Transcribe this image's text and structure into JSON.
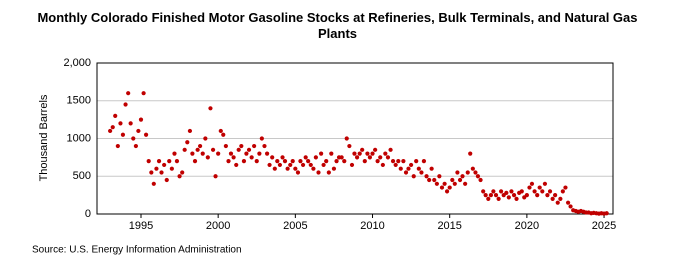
{
  "chart_data": {
    "type": "scatter",
    "title": "Monthly Colorado Finished Motor Gasoline Stocks at Refineries, Bulk Terminals, and Natural Gas Plants",
    "y_label": "Thousand Barrels",
    "source": "Source: U.S. Energy Information Administration",
    "color": "#c00000",
    "grid": true,
    "xlim": [
      1992.15,
      2025.58
    ],
    "xticks": [
      1995,
      2000,
      2005,
      2010,
      2015,
      2020,
      2025
    ],
    "ylim": [
      0,
      2000
    ],
    "yticks": [
      0,
      500,
      1000,
      1500,
      {
        "value": 2000,
        "label": "2,000"
      }
    ],
    "x": [
      1993,
      1993.17,
      1993.33,
      1993.5,
      1993.67,
      1993.83,
      1994,
      1994.17,
      1994.33,
      1994.5,
      1994.67,
      1994.83,
      1995,
      1995.17,
      1995.33,
      1995.5,
      1995.67,
      1995.83,
      1996,
      1996.17,
      1996.33,
      1996.5,
      1996.67,
      1996.83,
      1997,
      1997.17,
      1997.33,
      1997.5,
      1997.67,
      1997.83,
      1998,
      1998.17,
      1998.33,
      1998.5,
      1998.67,
      1998.83,
      1999,
      1999.17,
      1999.33,
      1999.5,
      1999.67,
      1999.83,
      2000,
      2000.17,
      2000.33,
      2000.5,
      2000.67,
      2000.83,
      2001,
      2001.17,
      2001.33,
      2001.5,
      2001.67,
      2001.83,
      2002,
      2002.17,
      2002.33,
      2002.5,
      2002.67,
      2002.83,
      2003,
      2003.17,
      2003.33,
      2003.5,
      2003.67,
      2003.83,
      2004,
      2004.17,
      2004.33,
      2004.5,
      2004.67,
      2004.83,
      2005,
      2005.17,
      2005.33,
      2005.5,
      2005.67,
      2005.83,
      2006,
      2006.17,
      2006.33,
      2006.5,
      2006.67,
      2006.83,
      2007,
      2007.17,
      2007.33,
      2007.5,
      2007.67,
      2007.83,
      2008,
      2008.17,
      2008.33,
      2008.5,
      2008.67,
      2008.83,
      2009,
      2009.17,
      2009.33,
      2009.5,
      2009.67,
      2009.83,
      2010,
      2010.17,
      2010.33,
      2010.5,
      2010.67,
      2010.83,
      2011,
      2011.17,
      2011.33,
      2011.5,
      2011.67,
      2011.83,
      2012,
      2012.17,
      2012.33,
      2012.5,
      2012.67,
      2012.83,
      2013,
      2013.17,
      2013.33,
      2013.5,
      2013.67,
      2013.83,
      2014,
      2014.17,
      2014.33,
      2014.5,
      2014.67,
      2014.83,
      2015,
      2015.17,
      2015.33,
      2015.5,
      2015.67,
      2015.83,
      2016,
      2016.17,
      2016.33,
      2016.5,
      2016.67,
      2016.83,
      2017,
      2017.17,
      2017.33,
      2017.5,
      2017.67,
      2017.83,
      2018,
      2018.17,
      2018.33,
      2018.5,
      2018.67,
      2018.83,
      2019,
      2019.17,
      2019.33,
      2019.5,
      2019.67,
      2019.83,
      2020,
      2020.17,
      2020.33,
      2020.5,
      2020.67,
      2020.83,
      2021,
      2021.17,
      2021.33,
      2021.5,
      2021.67,
      2021.83,
      2022,
      2022.17,
      2022.33,
      2022.5,
      2022.67,
      2022.83,
      2023,
      2023.17,
      2023.33,
      2023.5,
      2023.67,
      2023.83,
      2024,
      2024.17,
      2024.33,
      2024.5,
      2024.67,
      2024.83,
      2025,
      2025.17
    ],
    "values": [
      1100,
      1150,
      1300,
      900,
      1200,
      1050,
      1450,
      1600,
      1200,
      1000,
      900,
      1100,
      1250,
      1600,
      1050,
      700,
      550,
      400,
      600,
      700,
      550,
      650,
      450,
      700,
      600,
      800,
      700,
      500,
      550,
      850,
      950,
      1100,
      800,
      700,
      850,
      900,
      800,
      1000,
      750,
      1400,
      850,
      500,
      800,
      1100,
      1050,
      900,
      700,
      800,
      750,
      650,
      850,
      900,
      700,
      800,
      850,
      750,
      900,
      700,
      800,
      1000,
      900,
      800,
      650,
      750,
      600,
      700,
      650,
      750,
      700,
      600,
      650,
      700,
      600,
      550,
      700,
      650,
      750,
      700,
      650,
      600,
      750,
      550,
      800,
      650,
      700,
      550,
      800,
      600,
      700,
      750,
      750,
      700,
      1000,
      900,
      650,
      800,
      750,
      800,
      850,
      700,
      800,
      750,
      800,
      850,
      700,
      750,
      650,
      800,
      750,
      850,
      700,
      650,
      700,
      600,
      700,
      550,
      600,
      650,
      500,
      700,
      600,
      550,
      700,
      500,
      450,
      600,
      450,
      400,
      500,
      350,
      400,
      300,
      350,
      450,
      400,
      550,
      450,
      500,
      400,
      550,
      800,
      600,
      550,
      500,
      450,
      300,
      250,
      200,
      250,
      300,
      250,
      200,
      300,
      250,
      280,
      220,
      300,
      250,
      200,
      280,
      300,
      220,
      250,
      350,
      400,
      300,
      250,
      350,
      300,
      400,
      250,
      300,
      200,
      250,
      150,
      200,
      300,
      350,
      150,
      100,
      50,
      40,
      30,
      40,
      30,
      20,
      20,
      10,
      15,
      10,
      5,
      10,
      5,
      10
    ]
  }
}
